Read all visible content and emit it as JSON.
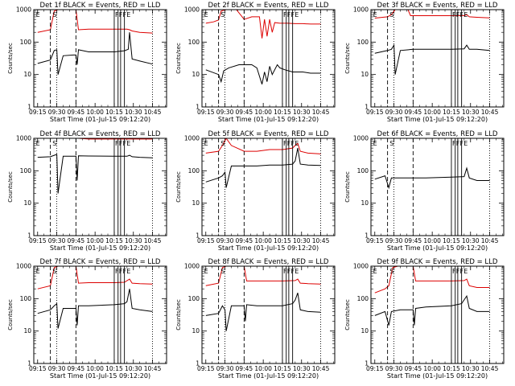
{
  "chart_data": {
    "type": "line",
    "x_tick_labels": [
      "09:15",
      "09:30",
      "09:45",
      "10:00",
      "10:15",
      "10:30",
      "10:45"
    ],
    "x_ticks_min": [
      0,
      15,
      30,
      45,
      60,
      75,
      90
    ],
    "x_range_min": [
      -3,
      101
    ],
    "xlabel": "Start Time (01-Jul-15 09:12:20)",
    "ylabel": "Counts/sec",
    "y_scale": "log",
    "y_range": [
      1,
      1000
    ],
    "y_tick_labels": [
      "1",
      "10",
      "100",
      "1000"
    ],
    "series_colors": {
      "events": "#000000",
      "lld": "#dd0000"
    },
    "panels": [
      {
        "title": "Det 1f BLACK = Events, RED = LLD",
        "flags": [
          "E",
          "S",
          "F",
          "F",
          "F",
          "E"
        ],
        "black": [
          [
            0,
            22
          ],
          [
            10,
            28
          ],
          [
            13,
            55
          ],
          [
            15,
            58
          ],
          [
            16,
            10
          ],
          [
            20,
            38
          ],
          [
            28,
            40
          ],
          [
            30,
            40
          ],
          [
            31,
            20
          ],
          [
            32,
            58
          ],
          [
            40,
            50
          ],
          [
            60,
            50
          ],
          [
            68,
            54
          ],
          [
            71,
            60
          ],
          [
            72,
            200
          ],
          [
            74,
            30
          ],
          [
            80,
            26
          ],
          [
            90,
            21
          ]
        ],
        "red": [
          [
            0,
            200
          ],
          [
            10,
            240
          ],
          [
            13,
            900
          ],
          [
            16,
            1000
          ],
          [
            20,
            1000
          ],
          [
            28,
            1000
          ],
          [
            30,
            1000
          ],
          [
            32,
            240
          ],
          [
            40,
            250
          ],
          [
            60,
            250
          ],
          [
            70,
            250
          ],
          [
            72,
            240
          ],
          [
            74,
            220
          ],
          [
            80,
            200
          ],
          [
            90,
            190
          ]
        ]
      },
      {
        "title": "Det 2f BLACK = Events, RED = LLD",
        "flags": [
          "E",
          "S",
          "F",
          "F",
          "F",
          "E"
        ],
        "black": [
          [
            0,
            14
          ],
          [
            10,
            10
          ],
          [
            12,
            6
          ],
          [
            14,
            13
          ],
          [
            18,
            16
          ],
          [
            26,
            20
          ],
          [
            30,
            20
          ],
          [
            36,
            20
          ],
          [
            40,
            16
          ],
          [
            44,
            5
          ],
          [
            46,
            12
          ],
          [
            48,
            6
          ],
          [
            50,
            18
          ],
          [
            52,
            10
          ],
          [
            56,
            20
          ],
          [
            58,
            16
          ],
          [
            62,
            14
          ],
          [
            68,
            12
          ],
          [
            72,
            12
          ],
          [
            76,
            12
          ],
          [
            82,
            11
          ],
          [
            90,
            11
          ]
        ],
        "red": [
          [
            0,
            380
          ],
          [
            6,
            420
          ],
          [
            10,
            480
          ],
          [
            12,
            900
          ],
          [
            16,
            1000
          ],
          [
            24,
            1000
          ],
          [
            30,
            500
          ],
          [
            36,
            600
          ],
          [
            42,
            600
          ],
          [
            44,
            130
          ],
          [
            46,
            500
          ],
          [
            48,
            150
          ],
          [
            50,
            500
          ],
          [
            52,
            200
          ],
          [
            54,
            400
          ],
          [
            58,
            380
          ],
          [
            64,
            380
          ],
          [
            70,
            370
          ],
          [
            76,
            370
          ],
          [
            82,
            360
          ],
          [
            90,
            360
          ]
        ]
      },
      {
        "title": "Det 3f BLACK = Events, RED = LLD",
        "flags": [
          "E",
          "S",
          "F",
          "F",
          "F",
          "E"
        ],
        "black": [
          [
            0,
            45
          ],
          [
            10,
            55
          ],
          [
            13,
            60
          ],
          [
            15,
            80
          ],
          [
            16,
            10
          ],
          [
            20,
            55
          ],
          [
            30,
            60
          ],
          [
            40,
            60
          ],
          [
            50,
            60
          ],
          [
            60,
            60
          ],
          [
            70,
            62
          ],
          [
            72,
            80
          ],
          [
            74,
            60
          ],
          [
            80,
            60
          ],
          [
            90,
            55
          ]
        ],
        "red": [
          [
            0,
            550
          ],
          [
            10,
            600
          ],
          [
            13,
            700
          ],
          [
            16,
            1000
          ],
          [
            20,
            1000
          ],
          [
            26,
            1000
          ],
          [
            28,
            650
          ],
          [
            40,
            650
          ],
          [
            60,
            650
          ],
          [
            70,
            650
          ],
          [
            72,
            700
          ],
          [
            74,
            600
          ],
          [
            80,
            580
          ],
          [
            90,
            560
          ]
        ]
      },
      {
        "title": "Det 4f BLACK = Events, RED = LLD",
        "flags": [
          "E",
          "S",
          "F",
          "F",
          "F",
          "E"
        ],
        "black": [
          [
            0,
            260
          ],
          [
            10,
            270
          ],
          [
            13,
            300
          ],
          [
            15,
            320
          ],
          [
            16,
            20
          ],
          [
            20,
            280
          ],
          [
            30,
            280
          ],
          [
            31,
            50
          ],
          [
            32,
            290
          ],
          [
            40,
            285
          ],
          [
            60,
            280
          ],
          [
            70,
            280
          ],
          [
            72,
            300
          ],
          [
            74,
            270
          ],
          [
            80,
            260
          ],
          [
            90,
            250
          ]
        ],
        "red": [
          [
            0,
            1000
          ],
          [
            10,
            1000
          ],
          [
            14,
            1000
          ],
          [
            18,
            1000
          ],
          [
            26,
            1000
          ],
          [
            28,
            1000
          ],
          [
            30,
            1100
          ],
          [
            32,
            1000
          ],
          [
            40,
            950
          ],
          [
            60,
            950
          ],
          [
            70,
            950
          ],
          [
            74,
            950
          ],
          [
            80,
            950
          ],
          [
            90,
            950
          ]
        ]
      },
      {
        "title": "Det 5f BLACK = Events, RED = LLD",
        "flags": [
          "E",
          "S",
          "F",
          "F",
          "F",
          "E"
        ],
        "black": [
          [
            0,
            45
          ],
          [
            10,
            60
          ],
          [
            13,
            70
          ],
          [
            15,
            90
          ],
          [
            16,
            30
          ],
          [
            20,
            140
          ],
          [
            30,
            140
          ],
          [
            40,
            140
          ],
          [
            50,
            150
          ],
          [
            60,
            150
          ],
          [
            68,
            160
          ],
          [
            70,
            200
          ],
          [
            72,
            500
          ],
          [
            74,
            160
          ],
          [
            80,
            150
          ],
          [
            90,
            145
          ]
        ],
        "red": [
          [
            0,
            350
          ],
          [
            10,
            400
          ],
          [
            13,
            600
          ],
          [
            16,
            1000
          ],
          [
            20,
            600
          ],
          [
            30,
            400
          ],
          [
            40,
            400
          ],
          [
            50,
            450
          ],
          [
            60,
            450
          ],
          [
            68,
            500
          ],
          [
            70,
            600
          ],
          [
            72,
            700
          ],
          [
            74,
            400
          ],
          [
            80,
            350
          ],
          [
            90,
            330
          ]
        ]
      },
      {
        "title": "Det 6f BLACK = Events, RED = LLD",
        "flags": [
          "E",
          "S",
          "F",
          "F",
          "F",
          "E"
        ],
        "black": [
          [
            0,
            55
          ],
          [
            8,
            70
          ],
          [
            11,
            30
          ],
          [
            13,
            60
          ],
          [
            18,
            60
          ],
          [
            30,
            60
          ],
          [
            40,
            60
          ],
          [
            50,
            62
          ],
          [
            60,
            64
          ],
          [
            70,
            66
          ],
          [
            72,
            120
          ],
          [
            74,
            60
          ],
          [
            80,
            50
          ],
          [
            90,
            50
          ]
        ],
        "red": [
          [
            0,
            1000
          ],
          [
            10,
            1000
          ],
          [
            20,
            1000
          ],
          [
            30,
            1000
          ],
          [
            40,
            1000
          ],
          [
            60,
            1000
          ],
          [
            70,
            1000
          ],
          [
            80,
            1000
          ],
          [
            90,
            1000
          ]
        ]
      },
      {
        "title": "Det 7f BLACK = Events, RED = LLD",
        "flags": [
          "E",
          "S",
          "F",
          "F",
          "F",
          "E"
        ],
        "black": [
          [
            0,
            35
          ],
          [
            10,
            45
          ],
          [
            13,
            60
          ],
          [
            15,
            70
          ],
          [
            16,
            12
          ],
          [
            20,
            50
          ],
          [
            28,
            50
          ],
          [
            30,
            50
          ],
          [
            31,
            15
          ],
          [
            32,
            60
          ],
          [
            40,
            60
          ],
          [
            60,
            65
          ],
          [
            68,
            70
          ],
          [
            70,
            80
          ],
          [
            72,
            200
          ],
          [
            74,
            50
          ],
          [
            80,
            45
          ],
          [
            90,
            40
          ]
        ],
        "red": [
          [
            0,
            200
          ],
          [
            10,
            250
          ],
          [
            13,
            900
          ],
          [
            16,
            1000
          ],
          [
            20,
            1000
          ],
          [
            28,
            1000
          ],
          [
            30,
            1000
          ],
          [
            32,
            300
          ],
          [
            40,
            310
          ],
          [
            60,
            310
          ],
          [
            68,
            320
          ],
          [
            72,
            400
          ],
          [
            74,
            300
          ],
          [
            80,
            290
          ],
          [
            90,
            280
          ]
        ]
      },
      {
        "title": "Det 8f BLACK = Events, RED = LLD",
        "flags": [
          "E",
          "S",
          "F",
          "F",
          "F",
          "E"
        ],
        "black": [
          [
            0,
            30
          ],
          [
            10,
            35
          ],
          [
            13,
            60
          ],
          [
            15,
            45
          ],
          [
            16,
            10
          ],
          [
            20,
            60
          ],
          [
            30,
            60
          ],
          [
            31,
            20
          ],
          [
            32,
            65
          ],
          [
            40,
            60
          ],
          [
            50,
            60
          ],
          [
            60,
            60
          ],
          [
            68,
            70
          ],
          [
            70,
            90
          ],
          [
            72,
            150
          ],
          [
            74,
            45
          ],
          [
            80,
            40
          ],
          [
            90,
            38
          ]
        ],
        "red": [
          [
            0,
            250
          ],
          [
            10,
            300
          ],
          [
            13,
            900
          ],
          [
            16,
            1000
          ],
          [
            20,
            1000
          ],
          [
            28,
            1000
          ],
          [
            30,
            1000
          ],
          [
            32,
            350
          ],
          [
            40,
            350
          ],
          [
            60,
            350
          ],
          [
            70,
            360
          ],
          [
            72,
            400
          ],
          [
            74,
            300
          ],
          [
            80,
            290
          ],
          [
            90,
            280
          ]
        ]
      },
      {
        "title": "Det 9f BLACK = Events, RED = LLD",
        "flags": [
          "E",
          "S",
          "F",
          "F",
          "F",
          "E"
        ],
        "black": [
          [
            0,
            30
          ],
          [
            8,
            40
          ],
          [
            11,
            15
          ],
          [
            13,
            40
          ],
          [
            20,
            45
          ],
          [
            30,
            45
          ],
          [
            31,
            15
          ],
          [
            32,
            50
          ],
          [
            40,
            55
          ],
          [
            60,
            60
          ],
          [
            68,
            70
          ],
          [
            72,
            120
          ],
          [
            74,
            50
          ],
          [
            80,
            40
          ],
          [
            90,
            40
          ]
        ],
        "red": [
          [
            0,
            150
          ],
          [
            8,
            200
          ],
          [
            11,
            250
          ],
          [
            14,
            900
          ],
          [
            18,
            1000
          ],
          [
            24,
            1000
          ],
          [
            30,
            1000
          ],
          [
            32,
            350
          ],
          [
            40,
            350
          ],
          [
            60,
            350
          ],
          [
            70,
            360
          ],
          [
            72,
            400
          ],
          [
            74,
            250
          ],
          [
            80,
            220
          ],
          [
            90,
            220
          ]
        ]
      }
    ]
  }
}
